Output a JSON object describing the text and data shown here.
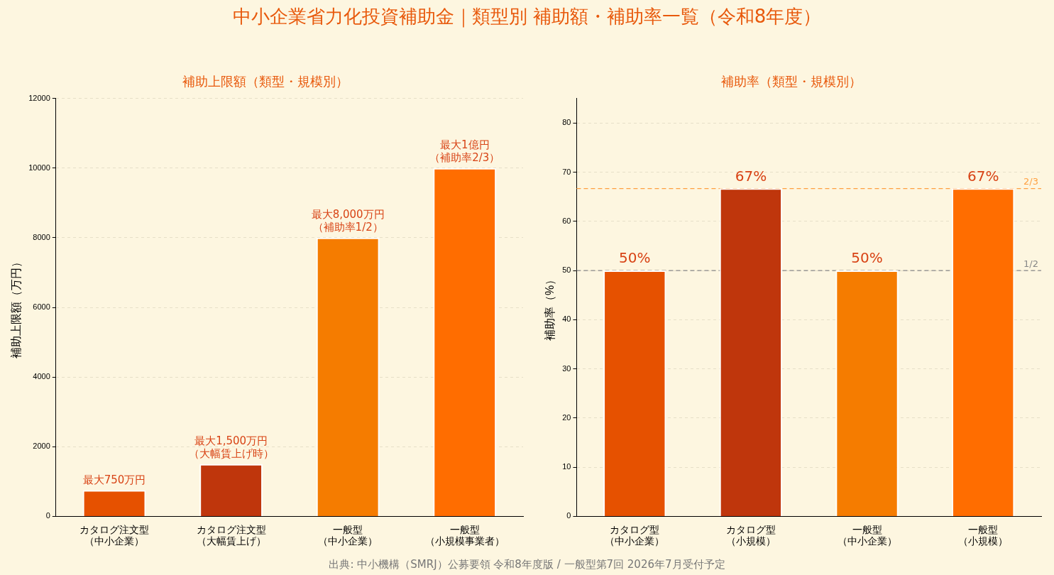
{
  "chart_data": [
    {
      "type": "bar",
      "title": "中小企業省力化投資補助金｜類型別 補助額・補助率一覧（令和8年度）",
      "subtitle": "補助上限額（類型・規模別）",
      "ylabel": "補助上限額（万円）",
      "categories": [
        "カタログ注文型（中小企業）",
        "カタログ注文型（大幅賃上げ）",
        "一般型（中小企業）",
        "一般型（小規模事業者）"
      ],
      "values": [
        750,
        1500,
        8000,
        10000
      ],
      "colors": [
        "#e65100",
        "#bf360c",
        "#f57c00",
        "#ff6d00"
      ],
      "value_labels": [
        "最大750万円",
        "最大1,500万円（大幅賃上げ時）",
        "最大8,000万円（補助率1/2）",
        "最大1億円（補助率2/3）"
      ],
      "ylim": [
        0,
        12000
      ],
      "yticks": [
        0,
        2000,
        4000,
        6000,
        8000,
        10000,
        12000
      ],
      "grid": "y"
    },
    {
      "type": "bar",
      "subtitle": "補助率（類型・規模別）",
      "ylabel": "補助率（%）",
      "categories": [
        "カタログ型（中小企業）",
        "カタログ型（小規模）",
        "一般型（中小企業）",
        "一般型（小規模）"
      ],
      "values": [
        50,
        66.7,
        50,
        66.7
      ],
      "colors": [
        "#e65100",
        "#bf360c",
        "#f57c00",
        "#ff6d00"
      ],
      "value_labels": [
        "50%",
        "67%",
        "50%",
        "67%"
      ],
      "ylim": [
        0,
        85
      ],
      "yticks": [
        0,
        10,
        20,
        30,
        40,
        50,
        60,
        70,
        80
      ],
      "grid": "y",
      "ref_lines": [
        {
          "axis": "y",
          "value": 66.67,
          "color": "#ffa040",
          "line_style": "dashed"
        },
        {
          "axis": "y",
          "value": 50,
          "color": "#888888",
          "line_style": "dashed"
        }
      ],
      "annotations": [
        {
          "text": "2/3",
          "y": 66.67
        },
        {
          "text": "1/2",
          "y": 50
        },
        "出典: 中小機構（SMRJ）公募要領 令和8年度版 / 一般型第7回 2026年7月受付予定"
      ]
    }
  ]
}
